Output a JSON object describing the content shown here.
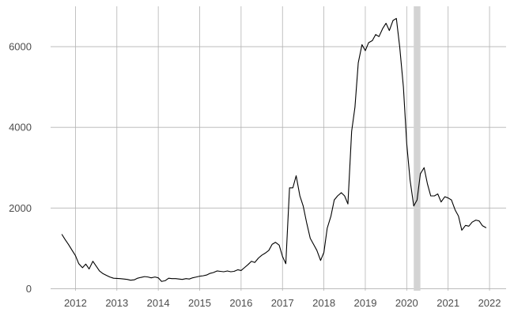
{
  "chart_data": {
    "type": "line",
    "title": "",
    "xlabel": "",
    "ylabel": "",
    "x_axis": {
      "type": "date",
      "range": [
        2011.4,
        2022.4
      ],
      "ticks": [
        2012,
        2013,
        2014,
        2015,
        2016,
        2017,
        2018,
        2019,
        2020,
        2021,
        2022
      ]
    },
    "y_axis": {
      "range": [
        -50,
        7000
      ],
      "ticks": [
        0,
        2000,
        4000,
        6000
      ]
    },
    "grid": true,
    "legend": "none",
    "shaded_bands": [
      {
        "x_start": 2020.17,
        "x_end": 2020.33,
        "color": "#d3d3d3"
      }
    ],
    "series": [
      {
        "color": "#000000",
        "points": [
          [
            2011.67,
            1350
          ],
          [
            2011.75,
            1220
          ],
          [
            2011.83,
            1100
          ],
          [
            2011.92,
            950
          ],
          [
            2012.0,
            820
          ],
          [
            2012.08,
            620
          ],
          [
            2012.17,
            520
          ],
          [
            2012.25,
            610
          ],
          [
            2012.33,
            490
          ],
          [
            2012.42,
            680
          ],
          [
            2012.5,
            560
          ],
          [
            2012.58,
            440
          ],
          [
            2012.67,
            370
          ],
          [
            2012.75,
            330
          ],
          [
            2012.83,
            290
          ],
          [
            2012.92,
            260
          ],
          [
            2013.0,
            255
          ],
          [
            2013.08,
            250
          ],
          [
            2013.17,
            240
          ],
          [
            2013.25,
            230
          ],
          [
            2013.33,
            210
          ],
          [
            2013.42,
            220
          ],
          [
            2013.5,
            260
          ],
          [
            2013.58,
            280
          ],
          [
            2013.67,
            300
          ],
          [
            2013.75,
            290
          ],
          [
            2013.83,
            270
          ],
          [
            2013.92,
            290
          ],
          [
            2014.0,
            270
          ],
          [
            2014.08,
            180
          ],
          [
            2014.17,
            200
          ],
          [
            2014.25,
            260
          ],
          [
            2014.33,
            250
          ],
          [
            2014.42,
            250
          ],
          [
            2014.5,
            240
          ],
          [
            2014.58,
            230
          ],
          [
            2014.67,
            250
          ],
          [
            2014.75,
            240
          ],
          [
            2014.83,
            270
          ],
          [
            2014.92,
            290
          ],
          [
            2015.0,
            310
          ],
          [
            2015.08,
            320
          ],
          [
            2015.17,
            340
          ],
          [
            2015.25,
            380
          ],
          [
            2015.33,
            400
          ],
          [
            2015.42,
            440
          ],
          [
            2015.5,
            430
          ],
          [
            2015.58,
            420
          ],
          [
            2015.67,
            440
          ],
          [
            2015.75,
            420
          ],
          [
            2015.83,
            430
          ],
          [
            2015.92,
            470
          ],
          [
            2016.0,
            450
          ],
          [
            2016.08,
            520
          ],
          [
            2016.17,
            600
          ],
          [
            2016.25,
            680
          ],
          [
            2016.33,
            650
          ],
          [
            2016.42,
            760
          ],
          [
            2016.5,
            830
          ],
          [
            2016.58,
            880
          ],
          [
            2016.67,
            950
          ],
          [
            2016.75,
            1100
          ],
          [
            2016.83,
            1150
          ],
          [
            2016.92,
            1080
          ],
          [
            2017.0,
            800
          ],
          [
            2017.08,
            620
          ],
          [
            2017.17,
            2500
          ],
          [
            2017.25,
            2500
          ],
          [
            2017.33,
            2800
          ],
          [
            2017.42,
            2300
          ],
          [
            2017.5,
            2050
          ],
          [
            2017.58,
            1650
          ],
          [
            2017.67,
            1250
          ],
          [
            2017.75,
            1100
          ],
          [
            2017.83,
            950
          ],
          [
            2017.92,
            700
          ],
          [
            2018.0,
            900
          ],
          [
            2018.08,
            1500
          ],
          [
            2018.17,
            1800
          ],
          [
            2018.25,
            2200
          ],
          [
            2018.33,
            2300
          ],
          [
            2018.42,
            2380
          ],
          [
            2018.5,
            2300
          ],
          [
            2018.58,
            2100
          ],
          [
            2018.67,
            3900
          ],
          [
            2018.75,
            4500
          ],
          [
            2018.83,
            5600
          ],
          [
            2018.92,
            6050
          ],
          [
            2019.0,
            5900
          ],
          [
            2019.08,
            6100
          ],
          [
            2019.17,
            6150
          ],
          [
            2019.25,
            6300
          ],
          [
            2019.33,
            6250
          ],
          [
            2019.42,
            6450
          ],
          [
            2019.5,
            6580
          ],
          [
            2019.58,
            6400
          ],
          [
            2019.67,
            6650
          ],
          [
            2019.75,
            6700
          ],
          [
            2019.83,
            6000
          ],
          [
            2019.92,
            5000
          ],
          [
            2020.0,
            3600
          ],
          [
            2020.08,
            2700
          ],
          [
            2020.17,
            2050
          ],
          [
            2020.25,
            2200
          ],
          [
            2020.33,
            2850
          ],
          [
            2020.42,
            3000
          ],
          [
            2020.5,
            2600
          ],
          [
            2020.58,
            2300
          ],
          [
            2020.67,
            2300
          ],
          [
            2020.75,
            2350
          ],
          [
            2020.83,
            2150
          ],
          [
            2020.92,
            2280
          ],
          [
            2021.0,
            2250
          ],
          [
            2021.08,
            2200
          ],
          [
            2021.17,
            1950
          ],
          [
            2021.25,
            1800
          ],
          [
            2021.33,
            1450
          ],
          [
            2021.42,
            1570
          ],
          [
            2021.5,
            1550
          ],
          [
            2021.58,
            1650
          ],
          [
            2021.67,
            1700
          ],
          [
            2021.75,
            1680
          ],
          [
            2021.83,
            1560
          ],
          [
            2021.92,
            1510
          ]
        ]
      }
    ]
  }
}
